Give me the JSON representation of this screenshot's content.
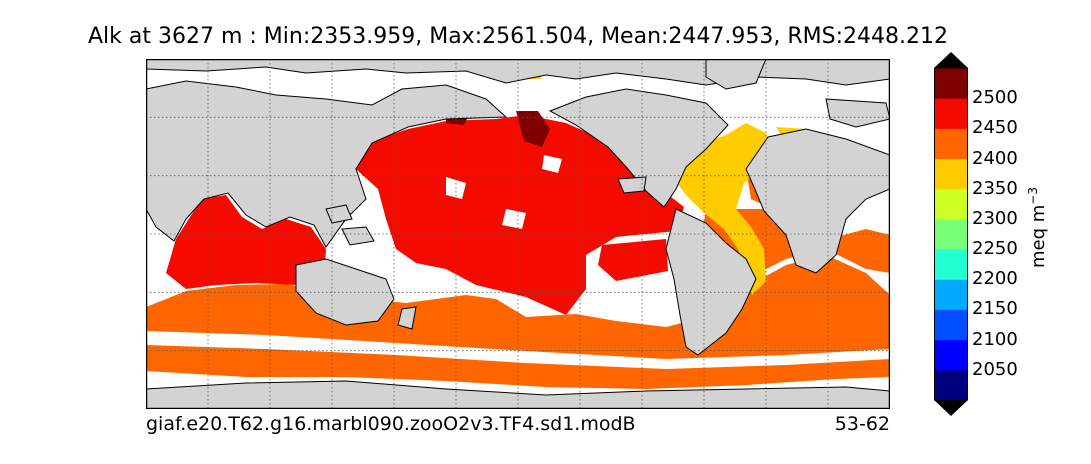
{
  "title": "Alk at 3627 m : Min:2353.959, Max:2561.504, Mean:2447.953, RMS:2448.212",
  "footer": {
    "case_name": "giaf.e20.T62.g16.marbl090.zooO2v3.TF4.sd1.modB",
    "years": "53-62"
  },
  "colorbar": {
    "units_base": "meq m",
    "units_exp": "−3",
    "labels": [
      "2050",
      "2100",
      "2150",
      "2200",
      "2250",
      "2300",
      "2350",
      "2400",
      "2450",
      "2500"
    ],
    "levels": [
      {
        "range": [
          2000,
          2050
        ],
        "color": "#00007f"
      },
      {
        "range": [
          2050,
          2100
        ],
        "color": "#0000ff"
      },
      {
        "range": [
          2100,
          2150
        ],
        "color": "#0050ff"
      },
      {
        "range": [
          2150,
          2200
        ],
        "color": "#00aaff"
      },
      {
        "range": [
          2200,
          2250
        ],
        "color": "#22ffd0"
      },
      {
        "range": [
          2250,
          2300
        ],
        "color": "#77ff77"
      },
      {
        "range": [
          2300,
          2350
        ],
        "color": "#ccff22"
      },
      {
        "range": [
          2350,
          2400
        ],
        "color": "#ffcc00"
      },
      {
        "range": [
          2400,
          2450
        ],
        "color": "#ff6600"
      },
      {
        "range": [
          2450,
          2500
        ],
        "color": "#f50a00"
      },
      {
        "range": [
          2500,
          2550
        ],
        "color": "#7f0000"
      }
    ],
    "extend_low_color": "#000000",
    "extend_high_color": "#000000"
  },
  "map": {
    "land_color": "#d3d3d3",
    "nodata_color": "#ffffff",
    "gridlines": "dotted"
  }
}
